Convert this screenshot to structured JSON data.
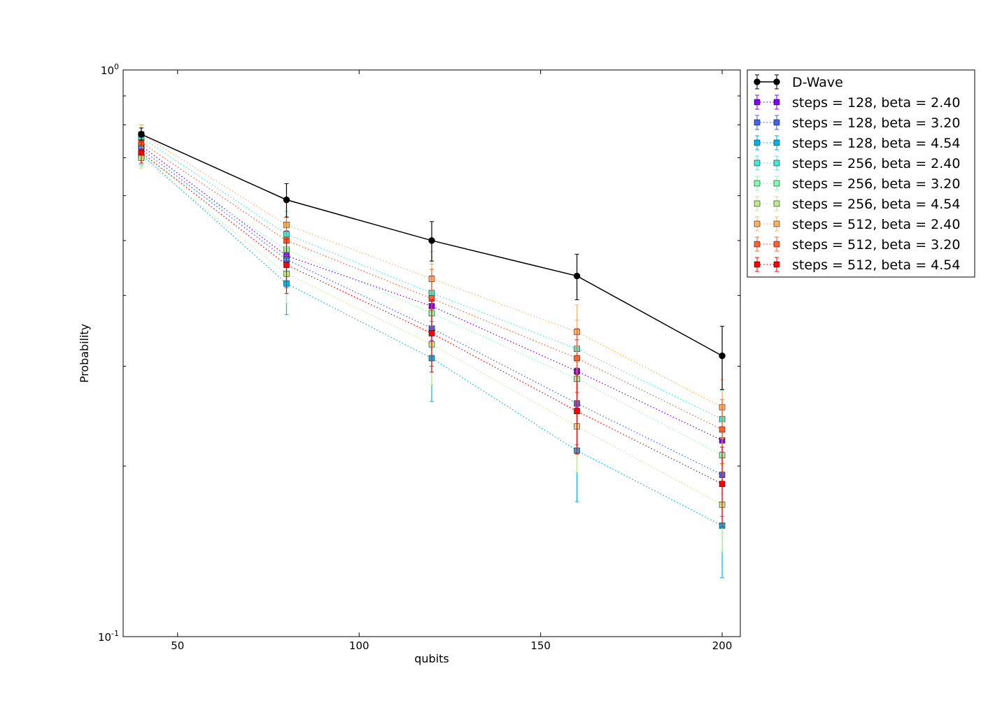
{
  "chart_data": {
    "type": "line",
    "title": "",
    "xlabel": "qubits",
    "ylabel": "Probability",
    "xlim": [
      35,
      205
    ],
    "ylim": [
      0.1,
      1.0
    ],
    "yscale": "log",
    "grid": false,
    "legend_position": "outside-right-top",
    "x_ticks": [
      {
        "value": 50,
        "label": "50"
      },
      {
        "value": 100,
        "label": "100"
      },
      {
        "value": 150,
        "label": "150"
      },
      {
        "value": 200,
        "label": "200"
      }
    ],
    "y_ticks": [
      {
        "value": 1.0,
        "base": "10",
        "exp": "0"
      },
      {
        "value": 0.1,
        "base": "10",
        "exp": "-1"
      }
    ],
    "x": [
      40,
      80,
      120,
      160,
      200
    ],
    "series": [
      {
        "name": "D-Wave",
        "color": "#000000",
        "marker": "circle",
        "linestyle": "solid",
        "values": [
          0.77,
          0.59,
          0.5,
          0.433,
          0.313
        ],
        "err": [
          0.02,
          0.04,
          0.04,
          0.04,
          0.04
        ]
      },
      {
        "name": "steps = 128, beta = 2.40",
        "color": "#8000ff",
        "marker": "square",
        "linestyle": "dotted",
        "values": [
          0.735,
          0.47,
          0.383,
          0.294,
          0.222
        ],
        "err": [
          0.03,
          0.05,
          0.05,
          0.04,
          0.03
        ]
      },
      {
        "name": "steps = 128, beta = 3.20",
        "color": "#4062fa",
        "marker": "square",
        "linestyle": "dotted",
        "values": [
          0.725,
          0.463,
          0.35,
          0.258,
          0.193
        ],
        "err": [
          0.03,
          0.05,
          0.05,
          0.04,
          0.03
        ]
      },
      {
        "name": "steps = 128, beta = 4.54",
        "color": "#00b5eb",
        "marker": "square",
        "linestyle": "dotted",
        "values": [
          0.71,
          0.42,
          0.31,
          0.213,
          0.157
        ],
        "err": [
          0.03,
          0.05,
          0.05,
          0.04,
          0.03
        ]
      },
      {
        "name": "steps = 256, beta = 2.40",
        "color": "#40ecd4",
        "marker": "square",
        "linestyle": "dotted",
        "values": [
          0.76,
          0.513,
          0.404,
          0.322,
          0.242
        ],
        "err": [
          0.03,
          0.05,
          0.05,
          0.04,
          0.03
        ]
      },
      {
        "name": "steps = 256, beta = 3.20",
        "color": "#80ffb4",
        "marker": "square",
        "linestyle": "dotted",
        "values": [
          0.705,
          0.482,
          0.372,
          0.285,
          0.209
        ],
        "err": [
          0.03,
          0.05,
          0.05,
          0.04,
          0.03
        ]
      },
      {
        "name": "steps = 256, beta = 4.54",
        "color": "#c0eb8d",
        "marker": "square",
        "linestyle": "dotted",
        "values": [
          0.7,
          0.437,
          0.328,
          0.235,
          0.171
        ],
        "err": [
          0.03,
          0.05,
          0.05,
          0.04,
          0.03
        ]
      },
      {
        "name": "steps = 512, beta = 2.40",
        "color": "#ffb360",
        "marker": "square",
        "linestyle": "dotted",
        "values": [
          0.77,
          0.533,
          0.428,
          0.345,
          0.254
        ],
        "err": [
          0.03,
          0.05,
          0.05,
          0.04,
          0.03
        ]
      },
      {
        "name": "steps = 512, beta = 3.20",
        "color": "#ff6130",
        "marker": "square",
        "linestyle": "dotted",
        "values": [
          0.745,
          0.5,
          0.395,
          0.31,
          0.232
        ],
        "err": [
          0.03,
          0.05,
          0.05,
          0.04,
          0.03
        ]
      },
      {
        "name": "steps = 512, beta = 4.54",
        "color": "#ff0000",
        "marker": "square",
        "linestyle": "dotted",
        "values": [
          0.715,
          0.453,
          0.343,
          0.25,
          0.186
        ],
        "err": [
          0.03,
          0.05,
          0.05,
          0.04,
          0.03
        ]
      }
    ]
  }
}
